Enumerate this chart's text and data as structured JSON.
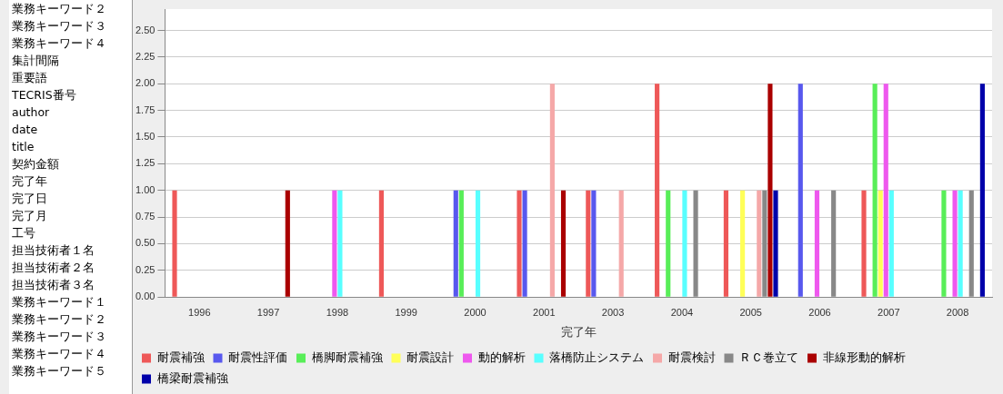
{
  "chart_data": {
    "type": "bar",
    "xlabel": "完了年",
    "categories": [
      "1996",
      "1997",
      "1998",
      "1999",
      "2000",
      "2001",
      "2003",
      "2004",
      "2005",
      "2006",
      "2007",
      "2008"
    ],
    "series": [
      {
        "name": "耐震補強",
        "color": "#ee5858",
        "values": [
          1,
          0,
          null,
          1,
          null,
          1,
          1,
          2,
          1,
          null,
          1,
          null
        ]
      },
      {
        "name": "耐震性評価",
        "color": "#5858ee",
        "values": [
          0,
          0,
          0,
          0,
          1,
          1,
          1,
          0,
          0,
          2,
          null,
          0
        ]
      },
      {
        "name": "橋脚耐震補強",
        "color": "#58ee58",
        "values": [
          0,
          0,
          0,
          0,
          1,
          0,
          0,
          1,
          0,
          null,
          2,
          1
        ]
      },
      {
        "name": "耐震設計",
        "color": "#ffff58",
        "values": [
          0,
          0,
          null,
          0,
          0,
          0,
          0,
          0,
          1,
          0,
          1,
          0
        ]
      },
      {
        "name": "動的解析",
        "color": "#ee58ee",
        "values": [
          0,
          0,
          1,
          0,
          0,
          0,
          0,
          0,
          0,
          1,
          2,
          1
        ]
      },
      {
        "name": "落橋防止システム",
        "color": "#58ffff",
        "values": [
          0,
          0,
          1,
          0,
          1,
          0,
          0,
          1,
          0,
          0,
          1,
          1
        ]
      },
      {
        "name": "耐震検討",
        "color": "#f5a8a8",
        "values": [
          0,
          0,
          0,
          0,
          0,
          2,
          1,
          0,
          1,
          0,
          0,
          0
        ]
      },
      {
        "name": "ＲＣ巻立て",
        "color": "#888888",
        "values": [
          0,
          0,
          0,
          0,
          0,
          0,
          0,
          1,
          1,
          1,
          0,
          1
        ]
      },
      {
        "name": "非線形動的解析",
        "color": "#aa0000",
        "values": [
          0,
          1,
          0,
          0,
          0,
          1,
          0,
          0,
          2,
          0,
          0,
          0
        ]
      },
      {
        "name": "橋梁耐震補強",
        "color": "#0000aa",
        "values": [
          0,
          0,
          0,
          0,
          0,
          0,
          0,
          0,
          1,
          0,
          0,
          2
        ]
      }
    ],
    "ylim": [
      0,
      2.7
    ],
    "yticks": [
      {
        "value": 0,
        "label": "0.00"
      },
      {
        "value": 0.25,
        "label": "0.25"
      },
      {
        "value": 0.5,
        "label": "0.50"
      },
      {
        "value": 0.75,
        "label": "0.75"
      },
      {
        "value": 1,
        "label": "1.00"
      },
      {
        "value": 1.25,
        "label": "1.25"
      },
      {
        "value": 1.5,
        "label": "1.50"
      },
      {
        "value": 1.75,
        "label": "1.75"
      },
      {
        "value": 2,
        "label": "2.00"
      },
      {
        "value": 2.25,
        "label": "2.25"
      },
      {
        "value": 2.5,
        "label": "2.50"
      }
    ],
    "grid": "y",
    "legend": "bottom",
    "annotations": [
      "業務キーワード２",
      "業務キーワード３",
      "業務キーワード４",
      "集計間隔",
      "重要語",
      "TECRIS番号",
      "author",
      "date",
      "title",
      "契約金額",
      "完了年",
      "完了日",
      "完了月",
      "工号",
      "担当技術者１名",
      "担当技術者２名",
      "担当技術者３名",
      "業務キーワード１",
      "業務キーワード２",
      "業務キーワード３",
      "業務キーワード４",
      "業務キーワード５"
    ]
  }
}
